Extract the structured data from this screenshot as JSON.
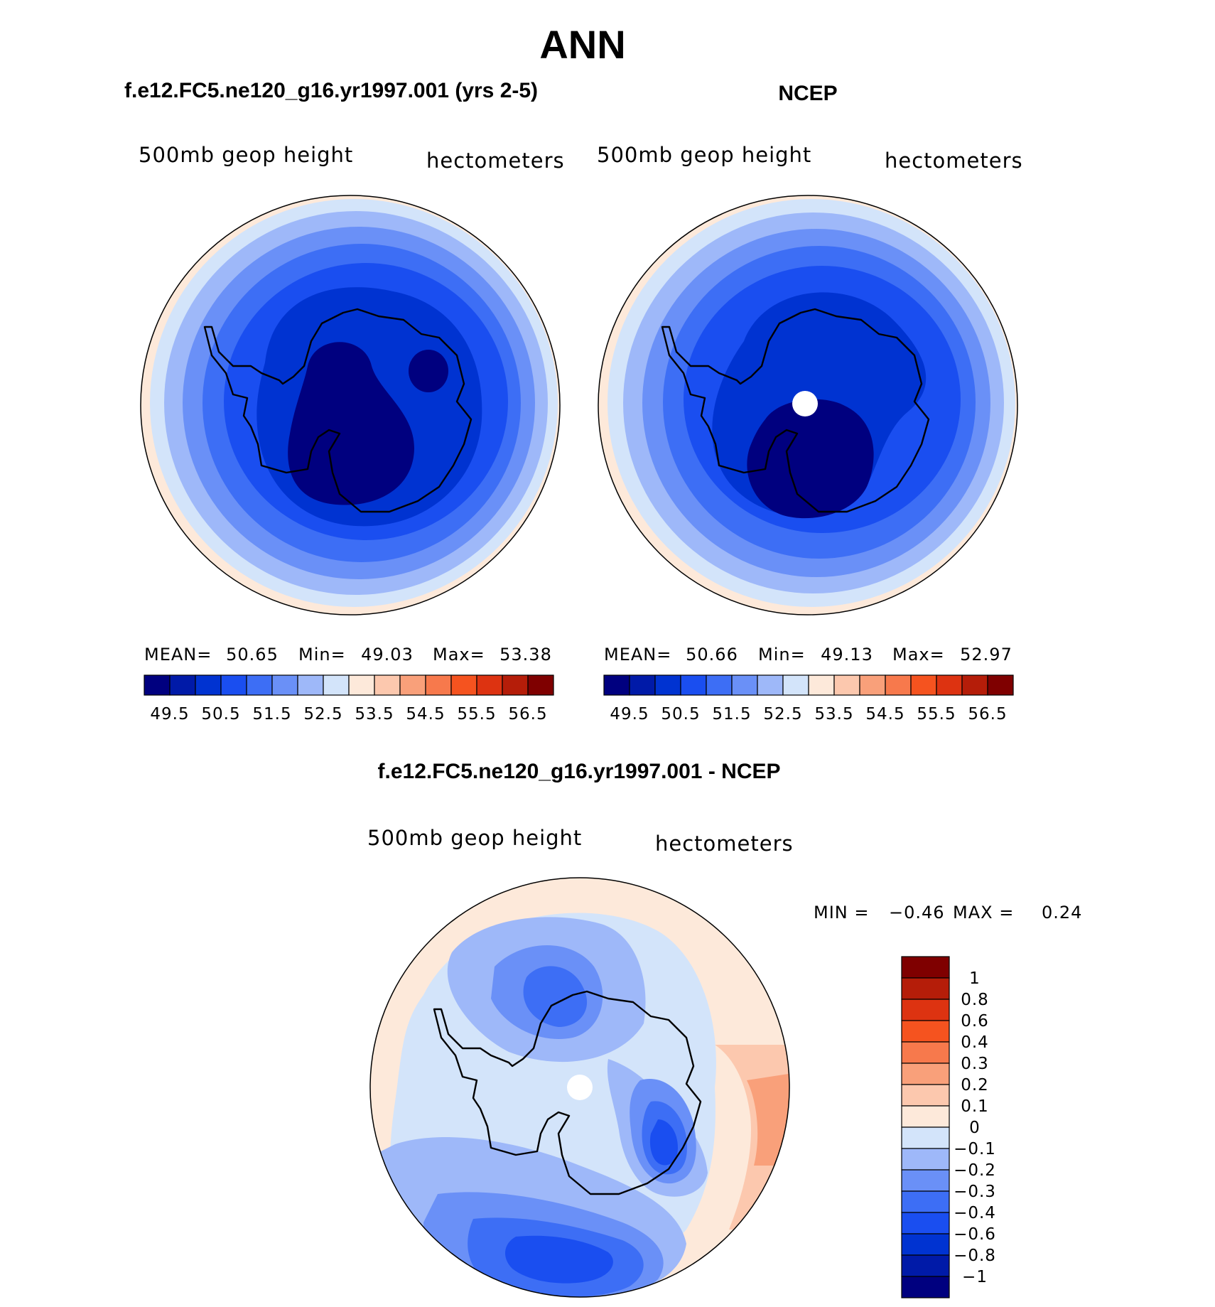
{
  "title": "ANN",
  "panels": [
    {
      "id": "model",
      "title": "f.e12.FC5.ne120_g16.yr1997.001 (yrs 2-5)",
      "field_label": "500mb geop height",
      "units_label": "hectometers",
      "stats": {
        "mean_label": "MEAN=",
        "mean": "50.65",
        "min_label": "Min=",
        "min": "49.03",
        "max_label": "Max=",
        "max": "53.38"
      }
    },
    {
      "id": "obs",
      "title": "NCEP",
      "field_label": "500mb geop height",
      "units_label": "hectometers",
      "stats": {
        "mean_label": "MEAN=",
        "mean": "50.66",
        "min_label": "Min=",
        "min": "49.13",
        "max_label": "Max=",
        "max": "52.97"
      }
    },
    {
      "id": "diff",
      "title": "f.e12.FC5.ne120_g16.yr1997.001 - NCEP",
      "field_label": "500mb geop height",
      "units_label": "hectometers",
      "minmax": {
        "min_label": "MIN =",
        "min": "−0.46",
        "max_label": "MAX =",
        "max": "0.24"
      }
    }
  ],
  "colorbar_abs": {
    "colors": [
      "#00007f",
      "#001aa8",
      "#0033d1",
      "#1a4ef0",
      "#3d6ef5",
      "#6a90f7",
      "#9eb8f9",
      "#d3e4fa",
      "#fde9da",
      "#fcc8ae",
      "#f9a07a",
      "#f7794c",
      "#f5531f",
      "#dd3311",
      "#b51d09",
      "#7f0000"
    ],
    "labels": [
      "49.5",
      "50.5",
      "51.5",
      "52.5",
      "53.5",
      "54.5",
      "55.5",
      "56.5"
    ]
  },
  "colorbar_diff": {
    "colors": [
      "#7f0000",
      "#b51d09",
      "#dd3311",
      "#f5531f",
      "#f7794c",
      "#f9a07a",
      "#fcc8ae",
      "#fde9da",
      "#d3e4fa",
      "#9eb8f9",
      "#6a90f7",
      "#3d6ef5",
      "#1a4ef0",
      "#0033d1",
      "#001aa8",
      "#00007f"
    ],
    "labels": [
      "1",
      "0.8",
      "0.6",
      "0.4",
      "0.3",
      "0.2",
      "0.1",
      "0",
      "−0.1",
      "−0.2",
      "−0.3",
      "−0.4",
      "−0.6",
      "−0.8",
      "−1"
    ]
  }
}
